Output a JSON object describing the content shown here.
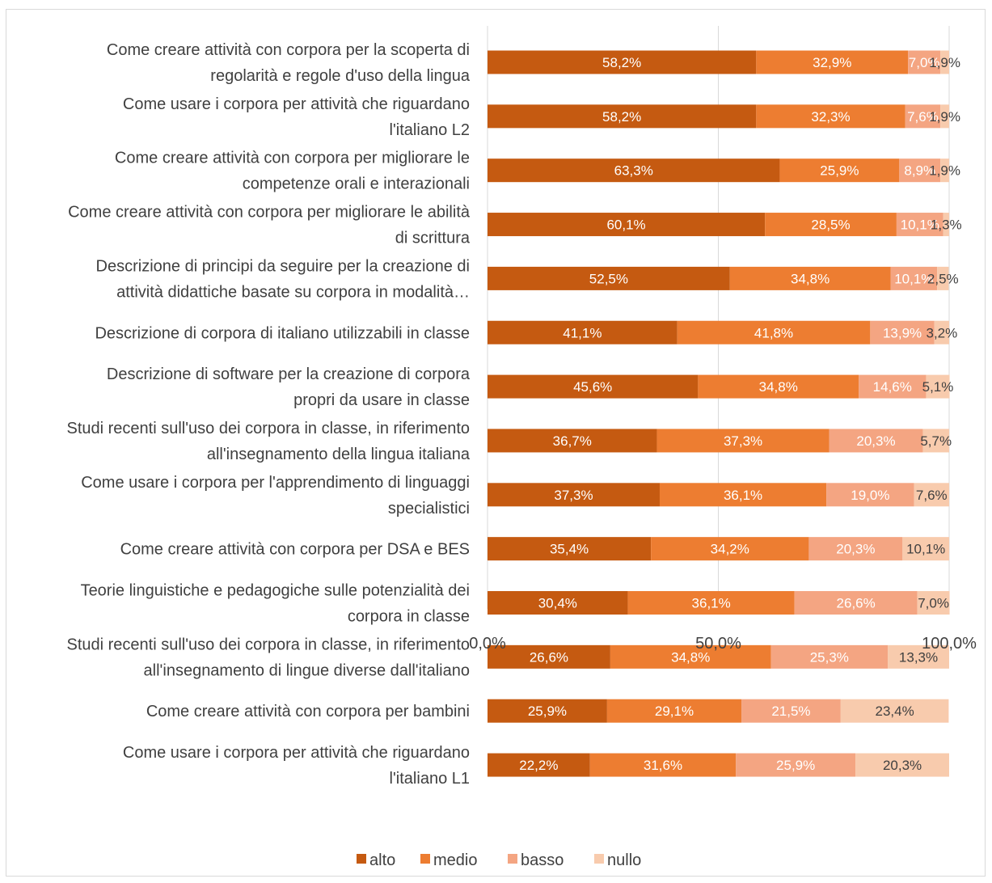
{
  "chart_data": {
    "type": "bar",
    "orientation": "horizontal",
    "stacked": true,
    "normalized": true,
    "categories": [
      [
        "Come creare attività con corpora per la scoperta di",
        "regolarità e regole d'uso della lingua"
      ],
      [
        "Come usare i corpora per attività che riguardano",
        "l'italiano L2"
      ],
      [
        "Come creare attività con corpora per migliorare le",
        "competenze orali e interazionali"
      ],
      [
        "Come creare attività con corpora per migliorare le abilità",
        "di scrittura"
      ],
      [
        "Descrizione di principi da seguire per la creazione di",
        "attività didattiche basate su corpora in modalità…"
      ],
      [
        "Descrizione di corpora di italiano utilizzabili in classe"
      ],
      [
        "Descrizione di software per la creazione di corpora",
        "propri da usare in classe"
      ],
      [
        "Studi recenti sull'uso dei corpora in classe, in riferimento",
        "all'insegnamento della lingua italiana"
      ],
      [
        "Come usare i corpora per l'apprendimento di linguaggi",
        "specialistici"
      ],
      [
        "Come creare attività con corpora per DSA e BES"
      ],
      [
        "Teorie linguistiche e pedagogiche sulle potenzialità dei",
        "corpora in classe"
      ],
      [
        "Studi recenti sull'uso dei corpora in classe, in riferimento",
        "all'insegnamento di lingue diverse dall'italiano"
      ],
      [
        "Come creare attività con corpora per bambini"
      ],
      [
        "Come usare i corpora per attività che riguardano",
        "l'italiano L1"
      ]
    ],
    "series": [
      {
        "name": "alto",
        "color": "#c55a11",
        "label_color": "#ffffff",
        "values": [
          58.2,
          58.2,
          63.3,
          60.1,
          52.5,
          41.1,
          45.6,
          36.7,
          37.3,
          35.4,
          30.4,
          26.6,
          25.9,
          22.2
        ],
        "labels": [
          "58,2%",
          "58,2%",
          "63,3%",
          "60,1%",
          "52,5%",
          "41,1%",
          "45,6%",
          "36,7%",
          "37,3%",
          "35,4%",
          "30,4%",
          "26,6%",
          "25,9%",
          "22,2%"
        ]
      },
      {
        "name": "medio",
        "color": "#ed7d31",
        "label_color": "#ffffff",
        "values": [
          32.9,
          32.3,
          25.9,
          28.5,
          34.8,
          41.8,
          34.8,
          37.3,
          36.1,
          34.2,
          36.1,
          34.8,
          29.1,
          31.6
        ],
        "labels": [
          "32,9%",
          "32,3%",
          "25,9%",
          "28,5%",
          "34,8%",
          "41,8%",
          "34,8%",
          "37,3%",
          "36,1%",
          "34,2%",
          "36,1%",
          "34,8%",
          "29,1%",
          "31,6%"
        ]
      },
      {
        "name": "basso",
        "color": "#f4a582",
        "label_color": "#ffffff",
        "values": [
          7.0,
          7.6,
          8.9,
          10.1,
          10.1,
          13.9,
          14.6,
          20.3,
          19.0,
          20.3,
          26.6,
          25.3,
          21.5,
          25.9
        ],
        "labels": [
          "7,0%",
          "7,6%",
          "8,9%",
          "10,1%",
          "10,1%",
          "13,9%",
          "14,6%",
          "20,3%",
          "19,0%",
          "20,3%",
          "26,6%",
          "25,3%",
          "21,5%",
          "25,9%"
        ]
      },
      {
        "name": "nullo",
        "color": "#f8cbad",
        "label_color": "#404040",
        "values": [
          1.9,
          1.9,
          1.9,
          1.3,
          2.5,
          3.2,
          5.1,
          5.7,
          7.6,
          10.1,
          7.0,
          13.3,
          23.4,
          20.3
        ],
        "labels": [
          "1,9%",
          "1,9%",
          "1,9%",
          "1,3%",
          "2,5%",
          "3,2%",
          "5,1%",
          "5,7%",
          "7,6%",
          "10,1%",
          "7,0%",
          "13,3%",
          "23,4%",
          "20,3%"
        ]
      }
    ],
    "xlim": [
      0,
      100
    ],
    "x_ticks": [
      0,
      50,
      100
    ],
    "x_tick_labels": [
      "0,0%",
      "50,0%",
      "100,0%"
    ],
    "grid": true,
    "gridline_color": "#d9d9d9",
    "legend_position": "bottom"
  }
}
